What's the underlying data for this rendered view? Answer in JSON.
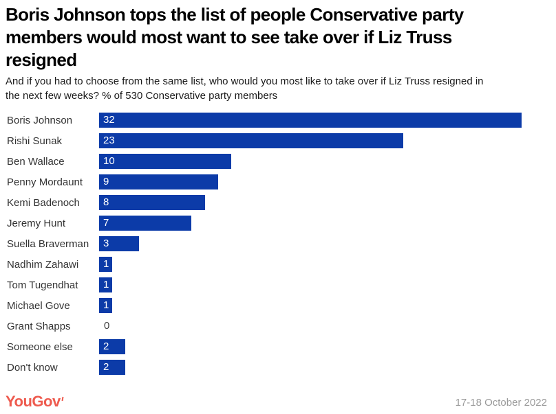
{
  "chart_data": {
    "type": "bar",
    "orientation": "horizontal",
    "title": "Boris Johnson tops the list of people Conservative party\nmembers would most want to see take over if Liz Truss\nresigned",
    "subtitle": "And if you had to choose from the same list, who would you most like to take over if Liz Truss resigned in\nthe next few weeks? % of 530 Conservative party members",
    "categories": [
      "Boris Johnson",
      "Rishi Sunak",
      "Ben Wallace",
      "Penny Mordaunt",
      "Kemi Badenoch",
      "Jeremy Hunt",
      "Suella Braverman",
      "Nadhim Zahawi",
      "Tom Tugendhat",
      "Michael Gove",
      "Grant Shapps",
      "Someone else",
      "Don't know"
    ],
    "values": [
      32,
      23,
      10,
      9,
      8,
      7,
      3,
      1,
      1,
      1,
      0,
      2,
      2
    ],
    "value_unit": "%",
    "xlim": [
      0,
      32
    ],
    "grid": "off",
    "data_labels": "inside-left"
  },
  "colors": {
    "bar": "#0c3ba8",
    "title_text": "#000000",
    "category_text": "#333333",
    "value_text_on_bar": "#ffffff",
    "logo": "#ee5b4f",
    "date_text": "#9a9a9a",
    "background": "#ffffff"
  },
  "footer": {
    "logo_text": "YouGov",
    "date": "17-18 October 2022"
  }
}
